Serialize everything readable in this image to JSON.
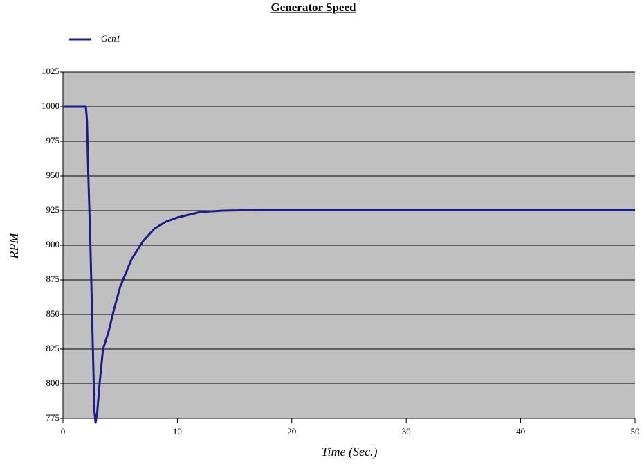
{
  "chart_data": {
    "type": "line",
    "title": "Generator Speed",
    "x_label": "Time (Sec.)",
    "y_label": "RPM",
    "x": [
      0,
      2,
      2.1,
      2.2,
      2.4,
      2.6,
      2.75,
      2.85,
      3.0,
      3.2,
      3.5,
      4,
      4.5,
      5,
      6,
      7,
      8,
      9,
      10,
      11,
      12,
      14,
      17,
      20,
      30,
      50
    ],
    "series": [
      {
        "name": "Gen1",
        "color": "#1c1c8c",
        "values": [
          1000,
          1000,
          990,
          955,
          900,
          830,
          780,
          772,
          780,
          800,
          825,
          838,
          855,
          870,
          890,
          903,
          912,
          917,
          920,
          922,
          924,
          925,
          925.5,
          925.5,
          925.5,
          925.5
        ]
      }
    ],
    "xlim": [
      0,
      50
    ],
    "xticks": [
      0,
      10,
      20,
      30,
      40,
      50
    ],
    "ylim": [
      775,
      1025
    ],
    "yticks": [
      775,
      800,
      825,
      850,
      875,
      900,
      925,
      950,
      975,
      1000,
      1025
    ],
    "grid": true,
    "plot_background": "#c0c0c0"
  }
}
